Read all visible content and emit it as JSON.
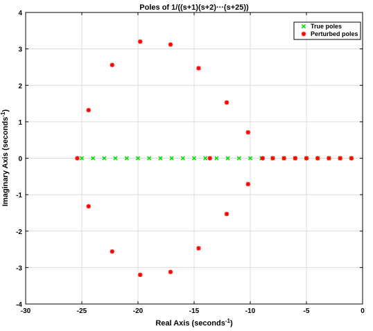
{
  "chart_data": {
    "type": "scatter",
    "title": "Poles of 1/((s+1)(s+2)···(s+25))",
    "xlabel": {
      "main": "Real Axis (seconds",
      "sup": "-1",
      "close": ")"
    },
    "ylabel": {
      "main": "Imaginary Axis (seconds",
      "sup": "-1",
      "close": ")"
    },
    "xlim": [
      -30,
      0
    ],
    "ylim": [
      -4,
      4
    ],
    "xticks": [
      -30,
      -25,
      -20,
      -15,
      -10,
      -5,
      0
    ],
    "yticks": [
      -4,
      -3,
      -2,
      -1,
      0,
      1,
      2,
      3,
      4
    ],
    "xtick_labels": [
      "-30",
      "-25",
      "-20",
      "-15",
      "-10",
      "-5",
      "0"
    ],
    "ytick_labels": [
      "-4",
      "-3",
      "-2",
      "-1",
      "0",
      "1",
      "2",
      "3",
      "4"
    ],
    "grid": true,
    "legend_position": "top-right",
    "series": [
      {
        "name": "True poles",
        "marker": "x",
        "color": "#00dd00",
        "x": [
          -1,
          -2,
          -3,
          -4,
          -5,
          -6,
          -7,
          -8,
          -9,
          -10,
          -11,
          -12,
          -13,
          -14,
          -15,
          -16,
          -17,
          -18,
          -19,
          -20,
          -21,
          -22,
          -23,
          -24,
          -25
        ],
        "y": [
          0,
          0,
          0,
          0,
          0,
          0,
          0,
          0,
          0,
          0,
          0,
          0,
          0,
          0,
          0,
          0,
          0,
          0,
          0,
          0,
          0,
          0,
          0,
          0,
          0
        ]
      },
      {
        "name": "Perturbed poles",
        "marker": "asterisk",
        "color": "#ff0000",
        "x": [
          -1,
          -2,
          -3,
          -4,
          -5,
          -6,
          -7,
          -8,
          -8.9,
          -10.2,
          -10.2,
          -12.1,
          -12.1,
          -13.6,
          -14.6,
          -14.6,
          -17.1,
          -17.1,
          -19.8,
          -19.8,
          -22.3,
          -22.3,
          -24.4,
          -24.4,
          -25.4
        ],
        "y": [
          0,
          0,
          0,
          0,
          0,
          0,
          0,
          0,
          0,
          0.71,
          -0.71,
          1.53,
          -1.53,
          0,
          2.47,
          -2.47,
          3.12,
          -3.12,
          3.2,
          -3.2,
          2.56,
          -2.56,
          1.32,
          -1.32,
          0
        ]
      }
    ]
  }
}
